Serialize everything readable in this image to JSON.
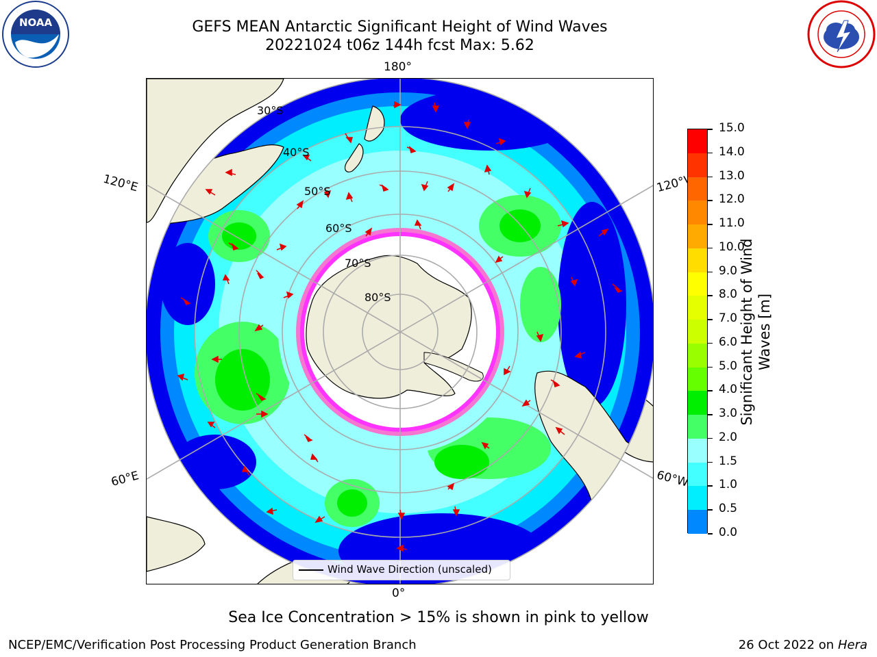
{
  "title": {
    "line1": "GEFS MEAN Antarctic Significant Height of Wind Waves",
    "line2": "20221024 t06z 144h fcst   Max: 5.62"
  },
  "logos": {
    "left_icon": "noaa-logo",
    "right_icon": "national-weather-service-logo"
  },
  "map": {
    "longitude_labels": {
      "top": "180°",
      "bottom": "0°",
      "upper_left": "120°E",
      "upper_right": "120°W",
      "lower_left": "60°E",
      "lower_right": "60°W"
    },
    "latitude_labels": [
      "30°S",
      "40°S",
      "50°S",
      "60°S",
      "70°S",
      "80°S"
    ],
    "legend_text": "Wind Wave Direction (unscaled)"
  },
  "colorbar": {
    "title": "Significant Height of Wind Waves [m]",
    "ticks": [
      "15.0",
      "14.0",
      "13.0",
      "12.0",
      "11.0",
      "10.0",
      "9.0",
      "8.0",
      "7.0",
      "6.0",
      "5.0",
      "4.0",
      "3.0",
      "2.0",
      "1.5",
      "1.0",
      "0.5",
      "0.0"
    ],
    "colors": [
      "#ff0000",
      "#ff3300",
      "#ff6600",
      "#ff8800",
      "#ffaa00",
      "#ffdd00",
      "#ffff00",
      "#e6ff00",
      "#ccff00",
      "#99ff00",
      "#66ff00",
      "#00ee00",
      "#44ff66",
      "#99ffff",
      "#44ffff",
      "#00eeff",
      "#0088ff",
      "#0000ee"
    ]
  },
  "note": "Sea Ice Concentration > 15% is shown in pink to yellow",
  "footer": {
    "left": "NCEP/EMC/Verification Post Processing Product Generation Branch",
    "right_date": "26 Oct 2022 on ",
    "right_machine": "Hera"
  }
}
